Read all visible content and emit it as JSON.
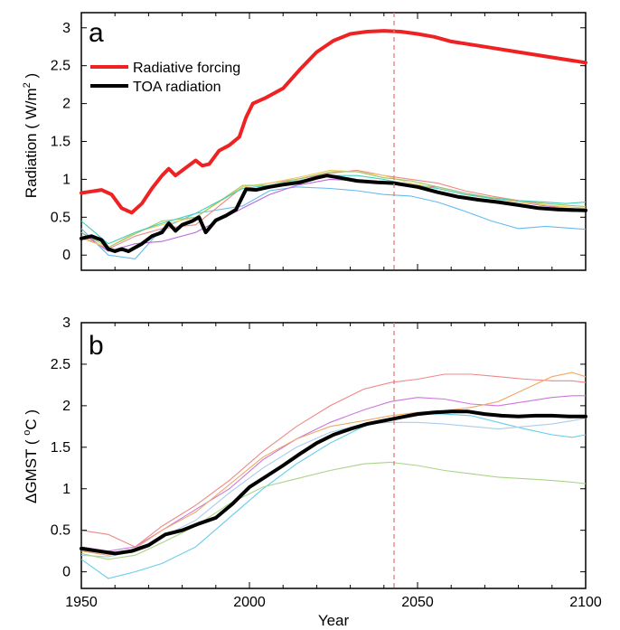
{
  "chart_data": [
    {
      "panel": "a",
      "type": "line",
      "ylabel_main": "Radiation ( W/m",
      "ylabel_sup": "2",
      "ylabel_tail": " )",
      "xlim": [
        1950,
        2100
      ],
      "ylim": [
        -0.2,
        3.2
      ],
      "yticks": [
        "0",
        "0.5",
        "1",
        "1.5",
        "2",
        "2.5",
        "3"
      ],
      "ytick_values": [
        0,
        0.5,
        1,
        1.5,
        2,
        2.5,
        3
      ],
      "vline": 2043,
      "legend": [
        "Radiative forcing",
        "TOA radiation"
      ],
      "series": [
        {
          "name": "Radiative forcing",
          "color": "#ee2222",
          "width": 4,
          "x": [
            1950,
            1953,
            1956,
            1959,
            1962,
            1965,
            1968,
            1971,
            1974,
            1976,
            1978,
            1981,
            1984,
            1986,
            1988,
            1991,
            1994,
            1997,
            1999,
            2001,
            2005,
            2010,
            2015,
            2020,
            2025,
            2030,
            2035,
            2040,
            2045,
            2050,
            2055,
            2060,
            2070,
            2080,
            2090,
            2100
          ],
          "y": [
            0.82,
            0.84,
            0.86,
            0.8,
            0.62,
            0.56,
            0.68,
            0.88,
            1.05,
            1.14,
            1.05,
            1.15,
            1.25,
            1.18,
            1.2,
            1.38,
            1.45,
            1.56,
            1.82,
            2.0,
            2.08,
            2.2,
            2.45,
            2.68,
            2.83,
            2.92,
            2.95,
            2.96,
            2.95,
            2.92,
            2.88,
            2.82,
            2.75,
            2.68,
            2.61,
            2.54
          ]
        },
        {
          "name": "TOA radiation",
          "color": "#000000",
          "width": 4,
          "x": [
            1950,
            1953,
            1956,
            1958,
            1960,
            1962,
            1964,
            1966,
            1968,
            1971,
            1974,
            1976,
            1978,
            1980,
            1983,
            1985,
            1987,
            1990,
            1993,
            1996,
            1999,
            2002,
            2006,
            2010,
            2015,
            2020,
            2023,
            2027,
            2032,
            2038,
            2043,
            2050,
            2056,
            2062,
            2068,
            2074,
            2080,
            2086,
            2092,
            2100
          ],
          "y": [
            0.22,
            0.25,
            0.2,
            0.08,
            0.05,
            0.08,
            0.05,
            0.1,
            0.15,
            0.25,
            0.3,
            0.42,
            0.32,
            0.4,
            0.45,
            0.5,
            0.3,
            0.46,
            0.52,
            0.6,
            0.87,
            0.86,
            0.9,
            0.93,
            0.96,
            1.02,
            1.05,
            1.02,
            0.98,
            0.96,
            0.95,
            0.9,
            0.83,
            0.77,
            0.73,
            0.7,
            0.66,
            0.62,
            0.6,
            0.59
          ]
        }
      ],
      "ensemble": [
        {
          "color": "#66bbee",
          "y": [
            0.35,
            0.0,
            -0.05,
            0.35,
            0.55,
            0.65,
            0.85,
            0.9,
            0.88,
            0.85,
            0.8,
            0.78,
            0.7,
            0.58,
            0.45,
            0.35,
            0.38,
            0.36,
            0.34
          ]
        },
        {
          "color": "#bb66dd",
          "y": [
            0.3,
            0.05,
            0.15,
            0.18,
            0.3,
            0.62,
            0.8,
            0.92,
            1.0,
            0.98,
            0.95,
            0.92,
            0.9,
            0.82,
            0.75,
            0.7,
            0.65,
            0.62,
            0.6
          ]
        },
        {
          "color": "#ee8888",
          "y": [
            0.25,
            0.08,
            0.25,
            0.35,
            0.4,
            0.9,
            0.95,
            1.0,
            1.08,
            1.12,
            1.05,
            1.0,
            0.95,
            0.85,
            0.78,
            0.72,
            0.66,
            0.62,
            0.58
          ]
        },
        {
          "color": "#eecc66",
          "y": [
            0.22,
            0.1,
            0.3,
            0.4,
            0.5,
            0.9,
            0.95,
            1.02,
            1.12,
            1.1,
            1.05,
            0.95,
            0.88,
            0.8,
            0.75,
            0.7,
            0.66,
            0.64,
            0.62
          ]
        },
        {
          "color": "#99cc66",
          "y": [
            0.3,
            0.1,
            0.28,
            0.45,
            0.5,
            0.92,
            0.92,
            1.0,
            1.1,
            1.1,
            1.02,
            0.98,
            0.9,
            0.82,
            0.76,
            0.72,
            0.68,
            0.66,
            0.64
          ]
        },
        {
          "color": "#44ccbb",
          "y": [
            0.45,
            0.15,
            0.3,
            0.42,
            0.55,
            0.88,
            0.92,
            0.98,
            1.05,
            1.05,
            1.0,
            0.92,
            0.88,
            0.8,
            0.75,
            0.72,
            0.7,
            0.68,
            0.7
          ]
        }
      ],
      "ensemble_x": [
        1950,
        1958,
        1966,
        1974,
        1984,
        1998,
        2006,
        2014,
        2024,
        2032,
        2040,
        2048,
        2056,
        2064,
        2072,
        2080,
        2088,
        2094,
        2100
      ]
    },
    {
      "panel": "b",
      "type": "line",
      "ylabel_main": "ΔGMST ( ",
      "ylabel_sup": "o",
      "ylabel_tail": "C )",
      "xlabel": "Year",
      "xlim": [
        1950,
        2100
      ],
      "ylim": [
        -0.2,
        3.0
      ],
      "yticks": [
        "0",
        "0.5",
        "1",
        "1.5",
        "2",
        "2.5",
        "3"
      ],
      "ytick_values": [
        0,
        0.5,
        1,
        1.5,
        2,
        2.5,
        3
      ],
      "xticks": [
        "1950",
        "2000",
        "2050",
        "2100"
      ],
      "xtick_values": [
        1950,
        2000,
        2050,
        2100
      ],
      "vline": 2043,
      "series": [
        {
          "name": "",
          "color": "#000000",
          "width": 4,
          "x": [
            1950,
            1955,
            1960,
            1965,
            1970,
            1975,
            1980,
            1985,
            1990,
            1995,
            2000,
            2005,
            2010,
            2015,
            2020,
            2025,
            2030,
            2035,
            2040,
            2045,
            2050,
            2055,
            2060,
            2065,
            2070,
            2075,
            2080,
            2085,
            2090,
            2095,
            2100
          ],
          "y": [
            0.28,
            0.25,
            0.22,
            0.25,
            0.32,
            0.45,
            0.5,
            0.58,
            0.65,
            0.82,
            1.02,
            1.15,
            1.28,
            1.42,
            1.55,
            1.65,
            1.72,
            1.78,
            1.82,
            1.86,
            1.9,
            1.92,
            1.93,
            1.93,
            1.9,
            1.88,
            1.87,
            1.88,
            1.88,
            1.87,
            1.87
          ]
        }
      ],
      "ensemble": [
        {
          "color": "#ee8888",
          "y": [
            0.5,
            0.45,
            0.3,
            0.55,
            0.8,
            1.1,
            1.45,
            1.75,
            2.0,
            2.2,
            2.28,
            2.32,
            2.38,
            2.38,
            2.35,
            2.32,
            2.3,
            2.3,
            2.28
          ]
        },
        {
          "color": "#cc77dd",
          "y": [
            0.3,
            0.25,
            0.3,
            0.5,
            0.75,
            1.0,
            1.35,
            1.6,
            1.8,
            1.95,
            2.05,
            2.1,
            2.08,
            2.02,
            2.0,
            2.05,
            2.1,
            2.12,
            2.12
          ]
        },
        {
          "color": "#eeaa66",
          "y": [
            0.25,
            0.2,
            0.28,
            0.5,
            0.72,
            1.05,
            1.38,
            1.6,
            1.75,
            1.82,
            1.88,
            1.92,
            1.94,
            1.98,
            2.05,
            2.2,
            2.35,
            2.4,
            2.35
          ]
        },
        {
          "color": "#66ccee",
          "y": [
            0.15,
            -0.08,
            0.0,
            0.1,
            0.3,
            0.65,
            1.0,
            1.3,
            1.55,
            1.75,
            1.85,
            1.9,
            1.9,
            1.88,
            1.8,
            1.72,
            1.65,
            1.62,
            1.65
          ]
        },
        {
          "color": "#aaccee",
          "y": [
            0.2,
            0.18,
            0.25,
            0.42,
            0.62,
            0.95,
            1.25,
            1.5,
            1.68,
            1.78,
            1.8,
            1.8,
            1.78,
            1.75,
            1.72,
            1.75,
            1.78,
            1.82,
            1.85
          ]
        },
        {
          "color": "#aad488",
          "y": [
            0.22,
            0.15,
            0.2,
            0.35,
            0.55,
            0.82,
            1.02,
            1.12,
            1.22,
            1.3,
            1.32,
            1.28,
            1.22,
            1.18,
            1.14,
            1.12,
            1.1,
            1.08,
            1.06
          ]
        }
      ],
      "ensemble_x": [
        1950,
        1958,
        1966,
        1974,
        1984,
        1994,
        2004,
        2014,
        2024,
        2034,
        2042,
        2050,
        2058,
        2066,
        2074,
        2082,
        2090,
        2096,
        2100
      ]
    }
  ]
}
